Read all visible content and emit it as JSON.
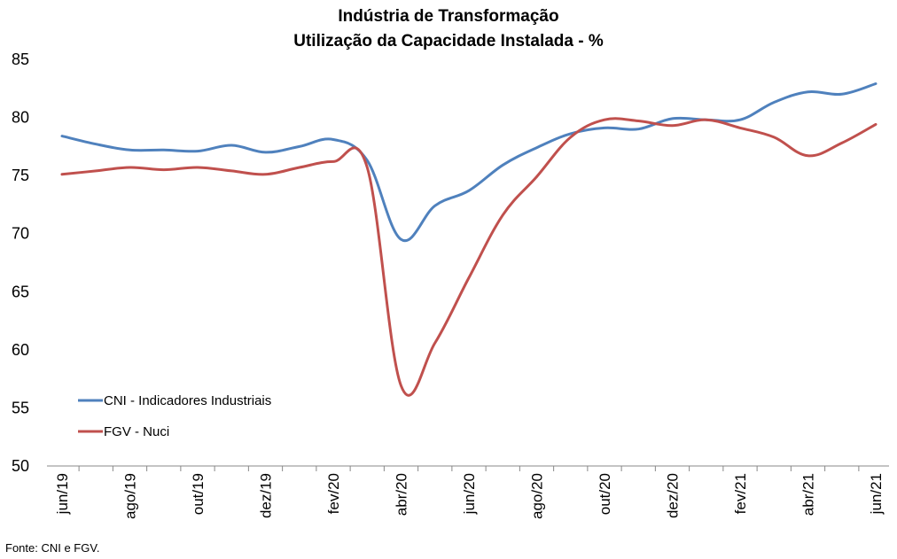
{
  "chart_data": {
    "type": "line",
    "title": "Indústria de Transformação",
    "subtitle": "Utilização da Capacidade Instalada - %",
    "xlabel": "",
    "ylabel": "",
    "ylim": [
      50,
      85
    ],
    "y_ticks": [
      "50",
      "55",
      "60",
      "65",
      "70",
      "75",
      "80",
      "85"
    ],
    "x": [
      "jun/19",
      "jul/19",
      "ago/19",
      "set/19",
      "out/19",
      "nov/19",
      "dez/19",
      "jan/20",
      "fev/20",
      "mar/20",
      "abr/20",
      "mai/20",
      "jun/20",
      "jul/20",
      "ago/20",
      "set/20",
      "out/20",
      "nov/20",
      "dez/20",
      "jan/21",
      "fev/21",
      "mar/21",
      "abr/21",
      "mai/21",
      "jun/21"
    ],
    "x_tick_labels": [
      "jun/19",
      "ago/19",
      "out/19",
      "dez/19",
      "fev/20",
      "abr/20",
      "jun/20",
      "ago/20",
      "out/20",
      "dez/20",
      "fev/21",
      "abr/21",
      "jun/21"
    ],
    "grid": false,
    "legend_position": "bottom-left",
    "series": [
      {
        "name": "CNI - Indicadores Industriais",
        "color": "#4f81bd",
        "values": [
          78.4,
          77.7,
          77.2,
          77.2,
          77.1,
          77.6,
          77.0,
          77.5,
          78.1,
          76.3,
          69.5,
          72.4,
          73.7,
          75.9,
          77.4,
          78.6,
          79.1,
          79.0,
          79.9,
          79.8,
          79.8,
          81.3,
          82.2,
          82.0,
          82.9
        ]
      },
      {
        "name": "FGV - Nuci",
        "color": "#c0504d",
        "values": [
          75.1,
          75.4,
          75.7,
          75.5,
          75.7,
          75.4,
          75.1,
          75.7,
          76.2,
          75.7,
          56.9,
          60.6,
          66.2,
          71.6,
          74.9,
          78.3,
          79.8,
          79.7,
          79.3,
          79.8,
          79.1,
          78.3,
          76.7,
          77.8,
          79.4
        ]
      }
    ]
  },
  "footer": {
    "source": "Fonte: CNI e FGV."
  }
}
